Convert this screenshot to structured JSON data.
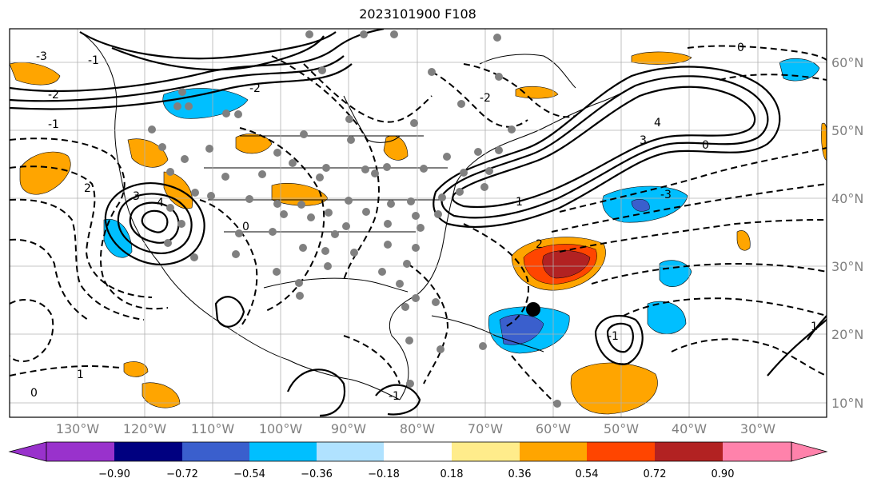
{
  "title": "2023101900 F108",
  "longitude_labels": [
    "130°W",
    "120°W",
    "110°W",
    "100°W",
    "90°W",
    "80°W",
    "70°W",
    "60°W",
    "50°W",
    "40°W",
    "30°W"
  ],
  "latitude_labels": [
    "60°N",
    "50°N",
    "40°N",
    "30°N",
    "20°N",
    "10°N"
  ],
  "colorbar": {
    "colors": [
      "#9932cc",
      "#000080",
      "#3a5fcd",
      "#00bfff",
      "#b0e2ff",
      "#ffffff",
      "#ffec8b",
      "#ffa500",
      "#ff4500",
      "#b22222",
      "#ff82ab"
    ],
    "tick_labels": [
      "−0.90",
      "−0.72",
      "−0.54",
      "−0.36",
      "−0.18",
      "0.18",
      "0.36",
      "0.54",
      "0.72",
      "0.90"
    ]
  },
  "contour_labels": [
    "-3",
    "-2",
    "-1",
    "0",
    "1",
    "2",
    "3",
    "4",
    "0",
    "-1",
    "-2",
    "-3",
    "4",
    "3",
    "2",
    "-2",
    "-1",
    "0",
    "1",
    "0",
    "-1",
    "-1"
  ],
  "markers": {
    "station_color": "#808080",
    "storm_center_color": "#000000"
  }
}
